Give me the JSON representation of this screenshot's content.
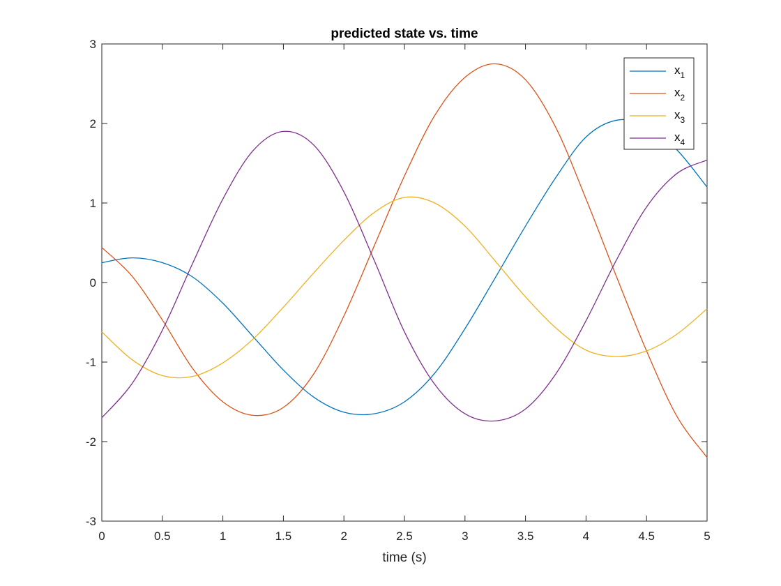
{
  "chart_data": {
    "type": "line",
    "title": "predicted state vs. time",
    "xlabel": "time (s)",
    "ylabel": "",
    "xlim": [
      0,
      5
    ],
    "ylim": [
      -3,
      3
    ],
    "xticks": [
      0,
      0.5,
      1,
      1.5,
      2,
      2.5,
      3,
      3.5,
      4,
      4.5,
      5
    ],
    "yticks": [
      -3,
      -2,
      -1,
      0,
      1,
      2,
      3
    ],
    "xtick_labels": [
      "0",
      "0.5",
      "1",
      "1.5",
      "2",
      "2.5",
      "3",
      "3.5",
      "4",
      "4.5",
      "5"
    ],
    "ytick_labels": [
      "-3",
      "-2",
      "-1",
      "0",
      "1",
      "2",
      "3"
    ],
    "grid": false,
    "legend_position": "top-right",
    "series": [
      {
        "name": "x",
        "subscript": "1",
        "color": "#0072BD",
        "x": [
          0,
          0.25,
          0.5,
          0.75,
          1,
          1.25,
          1.5,
          1.75,
          2,
          2.25,
          2.5,
          2.75,
          3,
          3.25,
          3.5,
          3.75,
          4,
          4.25,
          4.5,
          4.75,
          5
        ],
        "y": [
          0.25,
          0.31,
          0.25,
          0.07,
          -0.26,
          -0.68,
          -1.1,
          -1.44,
          -1.63,
          -1.65,
          -1.5,
          -1.14,
          -0.58,
          0.06,
          0.71,
          1.32,
          1.83,
          2.04,
          1.98,
          1.67,
          1.2
        ]
      },
      {
        "name": "x",
        "subscript": "2",
        "color": "#D95319",
        "x": [
          0,
          0.25,
          0.5,
          0.75,
          1,
          1.25,
          1.5,
          1.75,
          2,
          2.25,
          2.5,
          2.75,
          3,
          3.25,
          3.5,
          3.75,
          4,
          4.25,
          4.5,
          4.75,
          5
        ],
        "y": [
          0.44,
          0.08,
          -0.47,
          -1.08,
          -1.5,
          -1.67,
          -1.57,
          -1.15,
          -0.42,
          0.46,
          1.34,
          2.1,
          2.58,
          2.75,
          2.55,
          1.95,
          1.05,
          0.08,
          -0.86,
          -1.68,
          -2.2
        ]
      },
      {
        "name": "x",
        "subscript": "3",
        "color": "#EDB120",
        "x": [
          0,
          0.25,
          0.5,
          0.75,
          1,
          1.25,
          1.5,
          1.75,
          2,
          2.25,
          2.5,
          2.75,
          3,
          3.25,
          3.5,
          3.75,
          4,
          4.25,
          4.5,
          4.75,
          5
        ],
        "y": [
          -0.62,
          -0.97,
          -1.17,
          -1.18,
          -1.01,
          -0.71,
          -0.31,
          0.12,
          0.53,
          0.88,
          1.07,
          1.0,
          0.71,
          0.27,
          -0.18,
          -0.57,
          -0.85,
          -0.93,
          -0.86,
          -0.65,
          -0.33
        ]
      },
      {
        "name": "x",
        "subscript": "4",
        "color": "#7E2F8E",
        "x": [
          0,
          0.25,
          0.5,
          0.75,
          1,
          1.25,
          1.5,
          1.75,
          2,
          2.25,
          2.5,
          2.75,
          3,
          3.25,
          3.5,
          3.75,
          4,
          4.25,
          4.5,
          4.75,
          5
        ],
        "y": [
          -1.7,
          -1.27,
          -0.6,
          0.24,
          1.05,
          1.66,
          1.9,
          1.73,
          1.14,
          0.28,
          -0.62,
          -1.28,
          -1.65,
          -1.74,
          -1.59,
          -1.15,
          -0.48,
          0.28,
          0.95,
          1.37,
          1.54
        ]
      }
    ]
  }
}
